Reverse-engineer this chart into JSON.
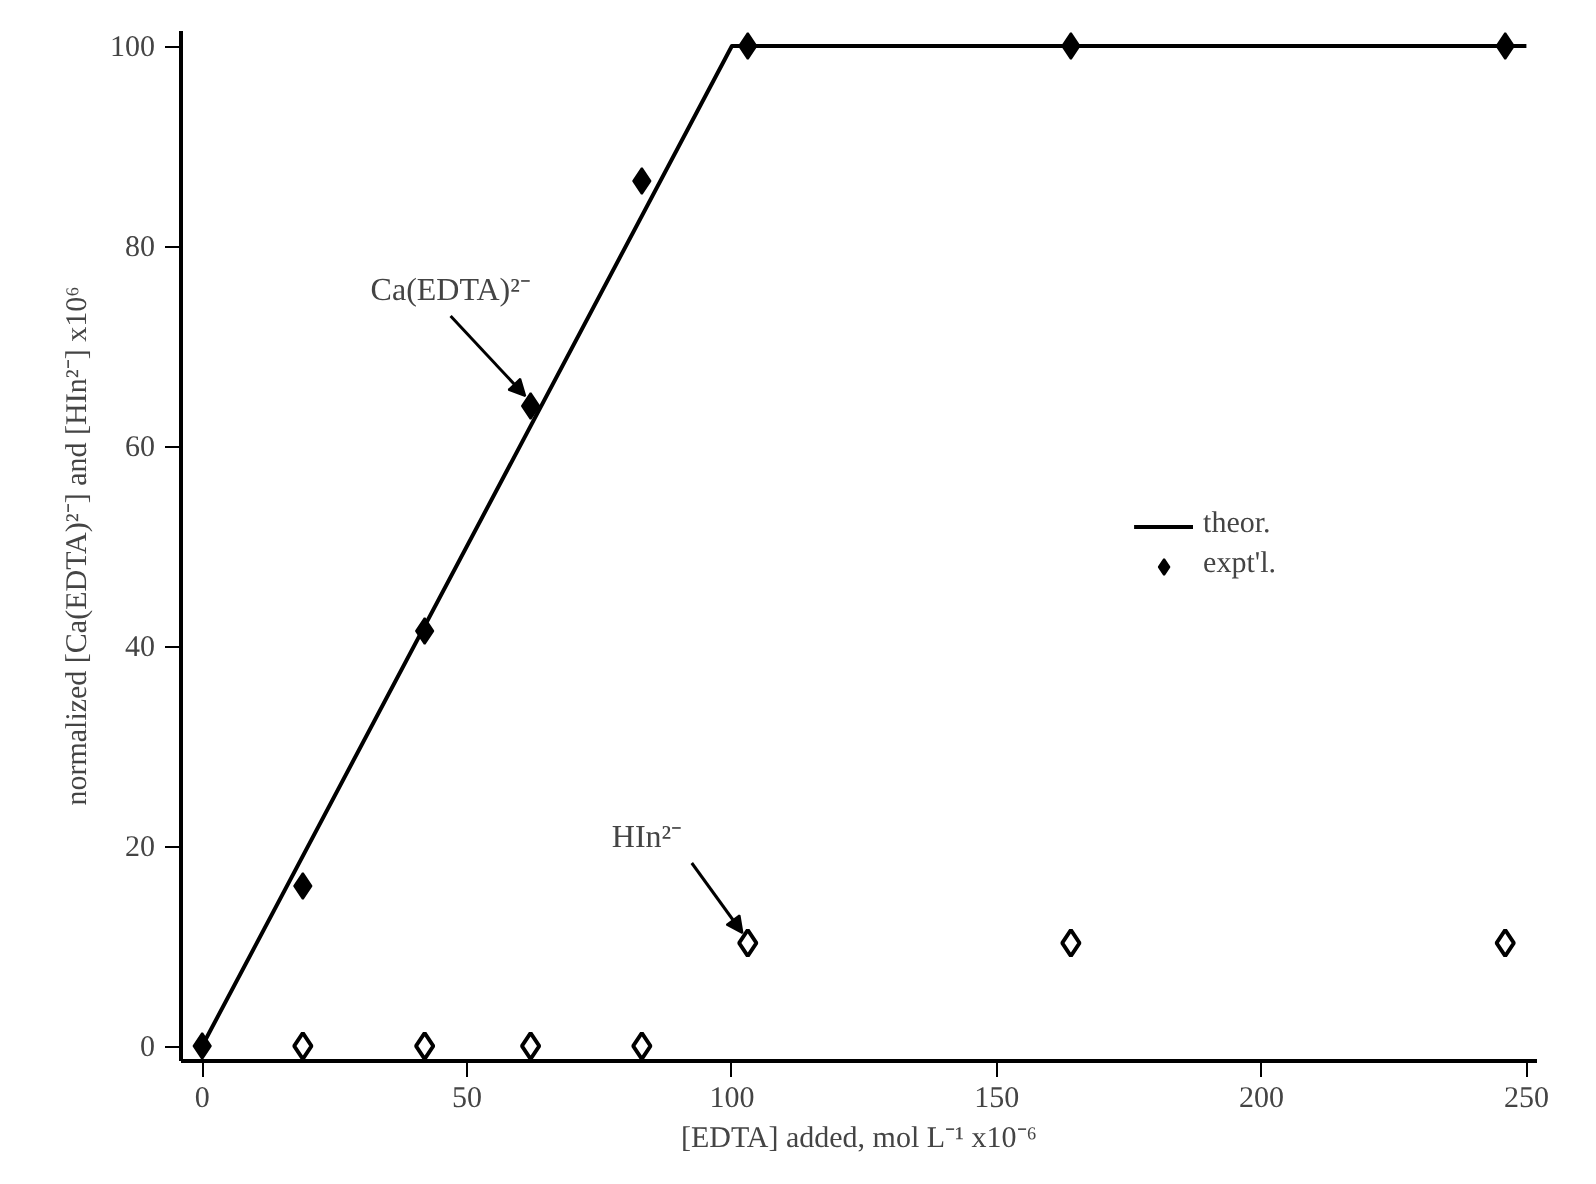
{
  "chart_data": {
    "type": "scatter",
    "xlabel": "[EDTA] added, mol L⁻¹ x10⁻⁶",
    "ylabel": "normalized [Ca(EDTA)²⁻] and [HIn²⁻] x10⁶",
    "series": [
      {
        "name": "theor.",
        "type": "line",
        "color": "#000000",
        "line_style": "solid",
        "x": [
          0,
          100,
          250
        ],
        "values": [
          0,
          100,
          100
        ]
      },
      {
        "name": "expt'l.",
        "color": "#000000",
        "marker": "diamond",
        "x": [
          0,
          19,
          42,
          62,
          83,
          103,
          164,
          246
        ],
        "values": [
          0,
          16,
          41.5,
          64,
          86.5,
          100,
          100,
          100
        ]
      },
      {
        "color": "#000000",
        "marker": "diamond_open",
        "x": [
          19,
          42,
          62,
          83,
          103,
          164,
          246
        ],
        "values": [
          0,
          0,
          0,
          0,
          10.3,
          10.3,
          10.3
        ]
      }
    ],
    "annotations": [
      {
        "text": "Ca(EDTA)²⁻",
        "x": 62,
        "y": 64
      },
      {
        "text": "HIn²⁻",
        "x": 103,
        "y": 10.3
      }
    ],
    "xlim": [
      -4,
      252
    ],
    "ylim": [
      -1.5,
      101.5
    ],
    "xticks": [
      0,
      50,
      100,
      150,
      200,
      250
    ],
    "yticks": [
      0,
      20,
      40,
      60,
      80,
      100
    ],
    "grid": false,
    "legend": "right"
  }
}
